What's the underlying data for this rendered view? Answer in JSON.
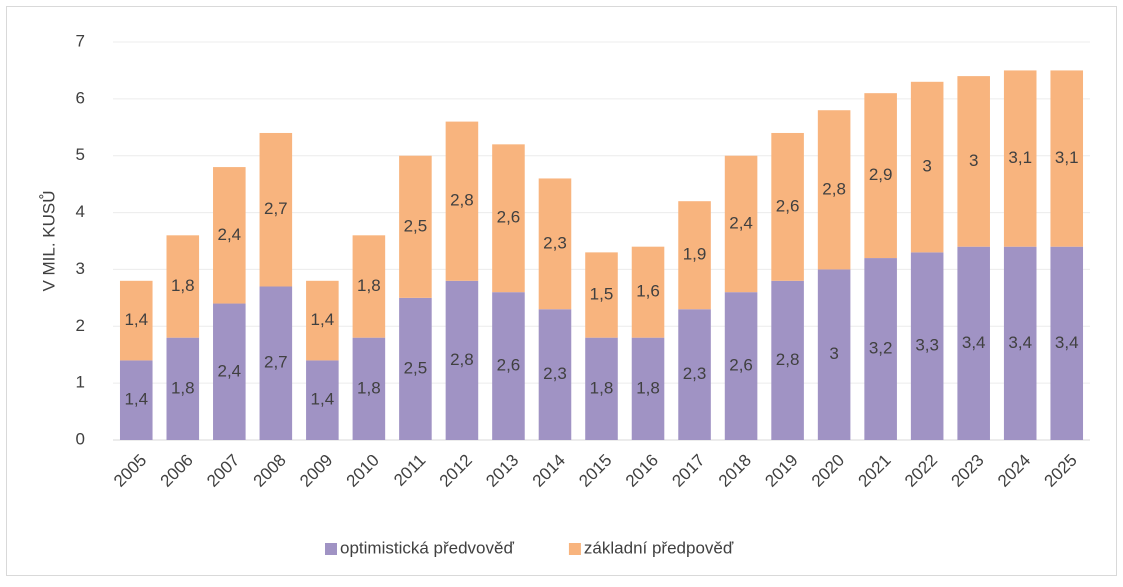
{
  "chart_data": {
    "type": "stacked_bar",
    "y_axis_label": "V MIL. KUSŮ",
    "categories": [
      "2005",
      "2006",
      "2007",
      "2008",
      "2009",
      "2010",
      "2011",
      "2012",
      "2013",
      "2014",
      "2015",
      "2016",
      "2017",
      "2018",
      "2019",
      "2020",
      "2021",
      "2022",
      "2023",
      "2024",
      "2025"
    ],
    "series": [
      {
        "name": "optimistická předvověď",
        "color": "#a093c4",
        "values": [
          1.4,
          1.8,
          2.4,
          2.7,
          1.4,
          1.8,
          2.5,
          2.8,
          2.6,
          2.3,
          1.8,
          1.8,
          2.3,
          2.6,
          2.8,
          3,
          3.2,
          3.3,
          3.4,
          3.4,
          3.4
        ],
        "value_labels": [
          "1,4",
          "1,8",
          "2,4",
          "2,7",
          "1,4",
          "1,8",
          "2,5",
          "2,8",
          "2,6",
          "2,3",
          "1,8",
          "1,8",
          "2,3",
          "2,6",
          "2,8",
          "3",
          "3,2",
          "3,3",
          "3,4",
          "3,4",
          "3,4"
        ]
      },
      {
        "name": "základní předpověď",
        "color": "#f8b47e",
        "values": [
          1.4,
          1.8,
          2.4,
          2.7,
          1.4,
          1.8,
          2.5,
          2.8,
          2.6,
          2.3,
          1.5,
          1.6,
          1.9,
          2.4,
          2.6,
          2.8,
          2.9,
          3,
          3,
          3.1,
          3.1
        ],
        "value_labels": [
          "1,4",
          "1,8",
          "2,4",
          "2,7",
          "1,4",
          "1,8",
          "2,5",
          "2,8",
          "2,6",
          "2,3",
          "1,5",
          "1,6",
          "1,9",
          "2,4",
          "2,6",
          "2,8",
          "2,9",
          "3",
          "3",
          "3,1",
          "3,1"
        ]
      }
    ],
    "ylim": [
      0,
      7
    ],
    "yticks": [
      0,
      1,
      2,
      3,
      4,
      5,
      6,
      7
    ],
    "grid": true,
    "legend": "bottom"
  }
}
